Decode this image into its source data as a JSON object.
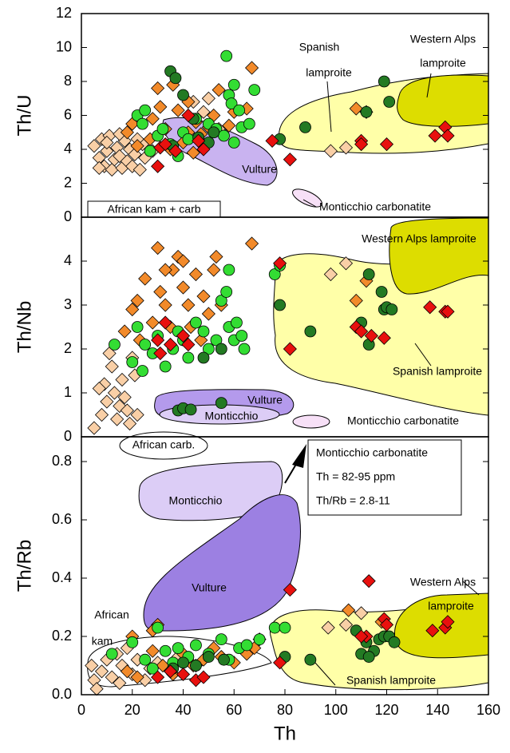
{
  "chart_data": [
    {
      "type": "scatter",
      "ylabel": "Th/U",
      "xlim": [
        0,
        160
      ],
      "ylim": [
        0,
        12
      ],
      "yticks": [
        0,
        2,
        4,
        6,
        8,
        10,
        12
      ],
      "annotations": [
        "Vulture",
        "Monticchio carbonatite",
        "Spanish",
        "lamproite",
        "Western Alps",
        "lamproite",
        "African kam + carb"
      ],
      "series": [
        {
          "marker": "diamond",
          "color": "#f9cfa6",
          "x": [
            5,
            7,
            8,
            9,
            10,
            11,
            12,
            13,
            14,
            15,
            16,
            17,
            18,
            19,
            20,
            21,
            23,
            24,
            25,
            28,
            44,
            48,
            50,
            54,
            98,
            104,
            7,
            10,
            15,
            22
          ],
          "values": [
            4.2,
            3.5,
            4.6,
            3.0,
            3.9,
            4.8,
            2.8,
            3.4,
            4.1,
            3.6,
            2.9,
            4.5,
            3.3,
            4.0,
            3.0,
            3.7,
            2.8,
            4.3,
            3.5,
            3.9,
            6.8,
            6.2,
            7.0,
            5.2,
            3.9,
            4.1,
            2.9,
            4.4,
            4.9,
            4.6
          ]
        },
        {
          "marker": "diamond",
          "color": "#f28a2a",
          "x": [
            18,
            20,
            22,
            27,
            28,
            30,
            31,
            33,
            35,
            36,
            38,
            40,
            42,
            44,
            45,
            47,
            48,
            50,
            52,
            54,
            58,
            60,
            67,
            65,
            108,
            112,
            42
          ],
          "values": [
            5.0,
            5.5,
            4.2,
            4.6,
            5.8,
            7.6,
            6.5,
            5.2,
            4.0,
            7.8,
            6.3,
            4.4,
            5.0,
            3.8,
            5.6,
            4.9,
            4.2,
            5.3,
            6.0,
            7.5,
            5.4,
            6.2,
            8.8,
            6.4,
            6.4,
            6.2,
            6.8
          ]
        },
        {
          "marker": "circle",
          "color": "#33dd33",
          "x": [
            22,
            24,
            25,
            27,
            30,
            32,
            38,
            40,
            42,
            45,
            50,
            53,
            56,
            57,
            58,
            59,
            60,
            62,
            63,
            66,
            68,
            60,
            35
          ],
          "values": [
            6.0,
            5.5,
            6.3,
            3.9,
            4.8,
            5.2,
            3.6,
            5.0,
            4.6,
            5.8,
            5.5,
            5.2,
            4.8,
            9.5,
            7.2,
            6.7,
            7.8,
            6.3,
            5.3,
            5.5,
            7.5,
            4.4,
            4.3
          ]
        },
        {
          "marker": "circle",
          "color": "#237a23",
          "x": [
            35,
            37,
            40,
            44,
            36,
            46,
            50,
            78,
            88,
            112,
            119,
            121,
            52
          ],
          "values": [
            8.6,
            8.2,
            7.2,
            5.8,
            4.2,
            4.7,
            4.4,
            4.6,
            5.3,
            6.2,
            8.0,
            6.8,
            5.0
          ]
        },
        {
          "marker": "diamond",
          "color": "#e8100e",
          "x": [
            30,
            31,
            33,
            37,
            42,
            46,
            48,
            75,
            82,
            110,
            110,
            120,
            139,
            143,
            144
          ],
          "values": [
            3.0,
            4.1,
            4.3,
            3.9,
            6.0,
            4.5,
            4.0,
            4.5,
            3.4,
            4.5,
            4.3,
            4.3,
            4.8,
            5.3,
            4.8
          ]
        }
      ]
    },
    {
      "type": "scatter",
      "ylabel": "Th/Nb",
      "xlim": [
        0,
        160
      ],
      "ylim": [
        0,
        5
      ],
      "yticks": [
        0,
        1,
        2,
        3,
        4
      ],
      "annotations": [
        "Western Alps lamproite",
        "Spanish lamproite",
        "Vulture",
        "Monticchio",
        "Monticchio carbonatite"
      ],
      "series": [
        {
          "marker": "diamond",
          "color": "#f9cfa6",
          "x": [
            5,
            8,
            9,
            10,
            12,
            13,
            14,
            15,
            16,
            17,
            19,
            20,
            22,
            11,
            7,
            18,
            98,
            104,
            21
          ],
          "values": [
            0.2,
            0.5,
            1.2,
            0.8,
            1.6,
            1.0,
            0.4,
            0.7,
            1.3,
            0.9,
            0.3,
            1.8,
            0.5,
            1.9,
            1.1,
            0.6,
            3.7,
            3.95,
            1.4
          ]
        },
        {
          "marker": "diamond",
          "color": "#f28a2a",
          "x": [
            17,
            20,
            22,
            23,
            25,
            28,
            30,
            31,
            33,
            35,
            36,
            38,
            40,
            42,
            43,
            45,
            47,
            48,
            50,
            52,
            53,
            55,
            40,
            33,
            67,
            108,
            112
          ],
          "values": [
            2.4,
            2.9,
            3.1,
            2.2,
            3.6,
            2.6,
            4.3,
            3.3,
            3.0,
            2.5,
            3.8,
            4.1,
            3.4,
            3.0,
            2.5,
            3.7,
            2.2,
            3.2,
            2.8,
            3.8,
            4.1,
            3.0,
            4.0,
            3.8,
            4.4,
            3.1,
            3.55
          ]
        },
        {
          "marker": "circle",
          "color": "#33dd33",
          "x": [
            13,
            20,
            22,
            24,
            25,
            28,
            30,
            33,
            36,
            38,
            40,
            45,
            48,
            50,
            53,
            55,
            57,
            58,
            60,
            61,
            63,
            64,
            58,
            76,
            78,
            42
          ],
          "values": [
            2.1,
            1.7,
            2.5,
            1.5,
            2.1,
            1.9,
            2.3,
            1.6,
            2.0,
            2.4,
            2.2,
            2.6,
            2.4,
            2.0,
            2.2,
            3.1,
            3.3,
            2.5,
            2.2,
            2.6,
            2.3,
            2.0,
            3.8,
            3.7,
            3.9,
            1.8
          ]
        },
        {
          "marker": "circle",
          "color": "#237a23",
          "x": [
            38,
            40,
            43,
            55,
            55,
            48,
            78,
            90,
            110,
            113,
            118,
            119,
            120,
            122,
            113
          ],
          "values": [
            0.6,
            0.65,
            0.62,
            0.77,
            2.0,
            1.8,
            3.0,
            2.4,
            2.6,
            3.7,
            3.3,
            2.9,
            2.95,
            2.9,
            2.1
          ]
        },
        {
          "marker": "diamond",
          "color": "#e8100e",
          "x": [
            30,
            31,
            33,
            35,
            40,
            42,
            78,
            82,
            108,
            110,
            114,
            119,
            137,
            143,
            144
          ],
          "values": [
            2.2,
            1.9,
            2.6,
            2.1,
            2.3,
            2.1,
            3.95,
            2.0,
            2.5,
            2.4,
            2.3,
            2.25,
            2.95,
            2.85,
            2.85
          ]
        }
      ]
    },
    {
      "type": "scatter",
      "ylabel": "Th/Rb",
      "xlabel": "Th",
      "xlim": [
        0,
        160
      ],
      "xticks": [
        0,
        20,
        40,
        60,
        80,
        100,
        120,
        140,
        160
      ],
      "ylim": [
        0,
        0.885
      ],
      "yticks": [
        {
          "value": 0,
          "label": "0.0"
        },
        0.2,
        0.4,
        0.6,
        0.8
      ],
      "annotations": [
        "African carb.",
        "Monticchio carbonatite",
        "Th = 82-95 ppm",
        "Th/Rb = 2.8-11",
        "Monticchio",
        "Vulture",
        "Western Alps",
        "lamproite",
        "African",
        "kam",
        "Spanish lamproite"
      ],
      "series": [
        {
          "marker": "diamond",
          "color": "#f9cfa6",
          "x": [
            4,
            5,
            6,
            8,
            10,
            12,
            14,
            15,
            16,
            18,
            20,
            22,
            25,
            27,
            30,
            35,
            38,
            45,
            97,
            104,
            110
          ],
          "values": [
            0.1,
            0.05,
            0.02,
            0.08,
            0.12,
            0.06,
            0.14,
            0.04,
            0.1,
            0.16,
            0.07,
            0.12,
            0.05,
            0.09,
            0.11,
            0.08,
            0.13,
            0.1,
            0.23,
            0.24,
            0.28
          ]
        },
        {
          "marker": "diamond",
          "color": "#f28a2a",
          "x": [
            18,
            20,
            22,
            28,
            30,
            32,
            36,
            40,
            44,
            48,
            52,
            55,
            60,
            65,
            68,
            70,
            105,
            118,
            28
          ],
          "values": [
            0.08,
            0.2,
            0.06,
            0.15,
            0.24,
            0.1,
            0.07,
            0.14,
            0.1,
            0.12,
            0.16,
            0.13,
            0.11,
            0.14,
            0.16,
            0.19,
            0.29,
            0.25,
            0.22
          ]
        },
        {
          "marker": "circle",
          "color": "#33dd33",
          "x": [
            12,
            20,
            25,
            28,
            30,
            33,
            36,
            42,
            45,
            50,
            55,
            58,
            62,
            65,
            70,
            76,
            80,
            38
          ],
          "values": [
            0.14,
            0.18,
            0.12,
            0.09,
            0.23,
            0.15,
            0.11,
            0.13,
            0.17,
            0.14,
            0.19,
            0.12,
            0.16,
            0.17,
            0.19,
            0.23,
            0.23,
            0.16
          ]
        },
        {
          "marker": "circle",
          "color": "#237a23",
          "x": [
            36,
            40,
            45,
            50,
            56,
            80,
            90,
            108,
            110,
            112,
            115,
            117,
            119,
            121,
            123,
            113
          ],
          "values": [
            0.09,
            0.11,
            0.1,
            0.13,
            0.12,
            0.13,
            0.12,
            0.22,
            0.14,
            0.18,
            0.15,
            0.19,
            0.2,
            0.2,
            0.18,
            0.13
          ]
        },
        {
          "marker": "diamond",
          "color": "#e8100e",
          "x": [
            30,
            35,
            40,
            45,
            48,
            78,
            82,
            113,
            112,
            119,
            120,
            138,
            143,
            144,
            110
          ],
          "values": [
            0.06,
            0.08,
            0.07,
            0.05,
            0.06,
            0.11,
            0.36,
            0.39,
            0.2,
            0.26,
            0.24,
            0.22,
            0.23,
            0.25,
            0.2
          ]
        }
      ]
    }
  ]
}
